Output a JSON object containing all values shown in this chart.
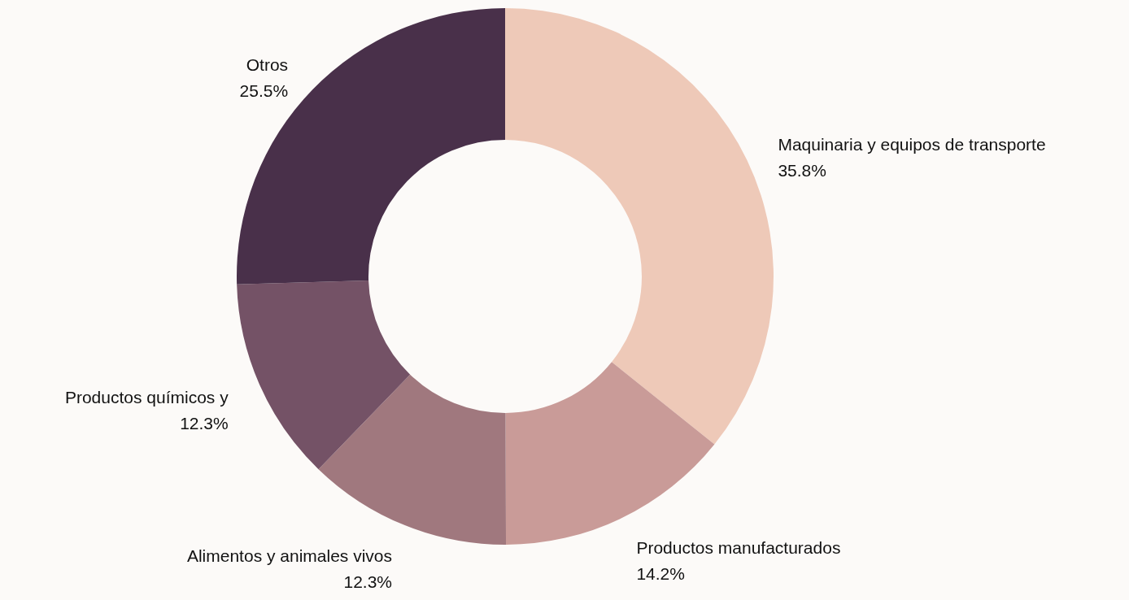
{
  "chart_data": {
    "type": "donut",
    "categories": [
      "Maquinaria y equipos de transporte",
      "Productos manufacturados",
      "Alimentos y animales vivos",
      "Productos químicos y",
      "Otros"
    ],
    "values": [
      35.8,
      14.2,
      12.3,
      12.3,
      25.5
    ],
    "value_labels": [
      "35.8%",
      "14.2%",
      "12.3%",
      "12.3%",
      "25.5%"
    ],
    "colors": [
      "#eec9b8",
      "#c99b98",
      "#a0787e",
      "#745266",
      "#49304a"
    ]
  }
}
